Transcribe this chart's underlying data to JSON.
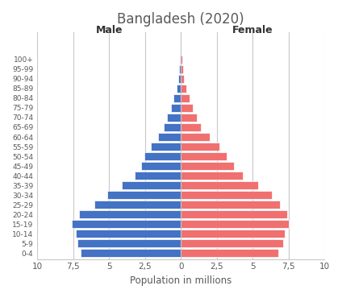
{
  "title": "Bangladesh (2020)",
  "xlabel": "Population in millions",
  "age_groups": [
    "0-4",
    "5-9",
    "10-14",
    "15-19",
    "20-24",
    "25-29",
    "30-34",
    "35-39",
    "40-44",
    "45-49",
    "50-54",
    "55-59",
    "60-64",
    "65-69",
    "70-74",
    "75-79",
    "80-84",
    "85-89",
    "90-94",
    "95-99",
    "100+"
  ],
  "male": [
    7.0,
    7.2,
    7.3,
    7.6,
    7.1,
    6.0,
    5.1,
    4.1,
    3.2,
    2.75,
    2.55,
    2.1,
    1.6,
    1.2,
    0.95,
    0.7,
    0.5,
    0.32,
    0.2,
    0.12,
    0.05
  ],
  "female": [
    6.8,
    7.1,
    7.2,
    7.5,
    7.4,
    6.9,
    6.3,
    5.4,
    4.3,
    3.7,
    3.2,
    2.7,
    2.0,
    1.4,
    1.1,
    0.85,
    0.6,
    0.36,
    0.22,
    0.14,
    0.07
  ],
  "male_color": "#4472C4",
  "female_color": "#F07070",
  "background_color": "#FFFFFF",
  "grid_color": "#C8C8C8",
  "text_color": "#595959",
  "male_label": "Male",
  "female_label": "Female",
  "xlim": 10,
  "xtick_positions": [
    -10,
    -7.5,
    -5,
    -2.5,
    0,
    2.5,
    5,
    7.5,
    10
  ],
  "xtick_labels": [
    "10",
    "7,5",
    "5",
    "2,5",
    "0",
    "2,5",
    "5",
    "7,5",
    "10"
  ]
}
